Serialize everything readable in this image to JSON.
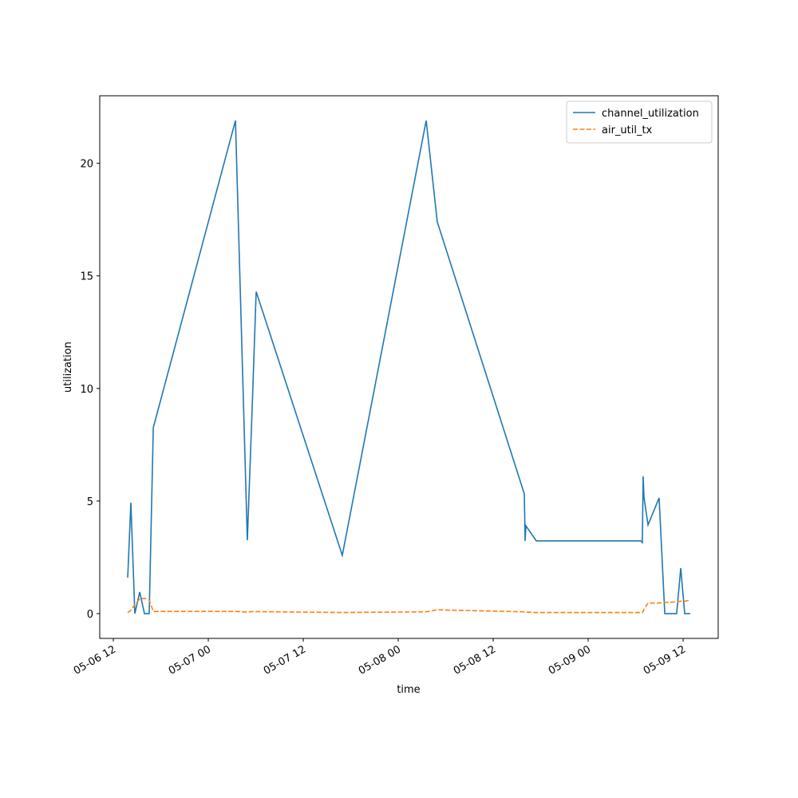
{
  "chart_data": {
    "type": "line",
    "xlabel": "time",
    "ylabel": "utilization",
    "x": [
      "05-06 13:49",
      "05-06 14:13",
      "05-06 14:43",
      "05-06 15:20",
      "05-06 15:56",
      "05-06 16:32",
      "05-06 17:03",
      "05-07 03:26",
      "05-07 04:56",
      "05-07 05:33",
      "05-07 06:03",
      "05-07 16:56",
      "05-08 03:32",
      "05-08 04:56",
      "05-08 15:56",
      "05-08 16:02",
      "05-08 16:08",
      "05-08 17:27",
      "05-09 06:39",
      "05-09 06:51",
      "05-09 06:57",
      "05-09 07:03",
      "05-09 07:34",
      "05-09 08:58",
      "05-09 09:41",
      "05-09 11:11",
      "05-09 11:42",
      "05-09 12:12",
      "05-09 12:54"
    ],
    "series": [
      {
        "name": "channel_utilization",
        "color": "#1f77b4",
        "linestyle": "solid",
        "values": [
          1.6,
          4.93,
          0,
          0.96,
          0,
          0,
          8.26,
          21.9,
          3.26,
          9.2,
          14.3,
          2.59,
          21.9,
          17.4,
          5.32,
          3.23,
          3.9,
          3.23,
          3.23,
          3.16,
          6.1,
          5.18,
          3.94,
          5.14,
          0,
          0,
          2.02,
          0,
          0
        ]
      },
      {
        "name": "air_util_tx",
        "color": "#ff7f0e",
        "linestyle": "dashed",
        "values": [
          0.04,
          0.15,
          0.4,
          0.65,
          0.68,
          0.6,
          0.1,
          0.1,
          0.07,
          0.09,
          0.09,
          0.05,
          0.08,
          0.17,
          0.08,
          0.08,
          0.07,
          0.05,
          0.05,
          0.05,
          0.1,
          0.2,
          0.47,
          0.47,
          0.5,
          0.52,
          0.55,
          0.55,
          0.6
        ]
      }
    ],
    "xlim": [
      "05-06 10:17",
      "05-09 16:26"
    ],
    "xticks": [
      "05-06 12",
      "05-07 00",
      "05-07 12",
      "05-08 00",
      "05-08 12",
      "05-09 00",
      "05-09 12"
    ],
    "ylim": [
      -1.1,
      23.0
    ],
    "yticks": [
      0,
      5,
      10,
      15,
      20
    ],
    "legend": "upper right"
  }
}
